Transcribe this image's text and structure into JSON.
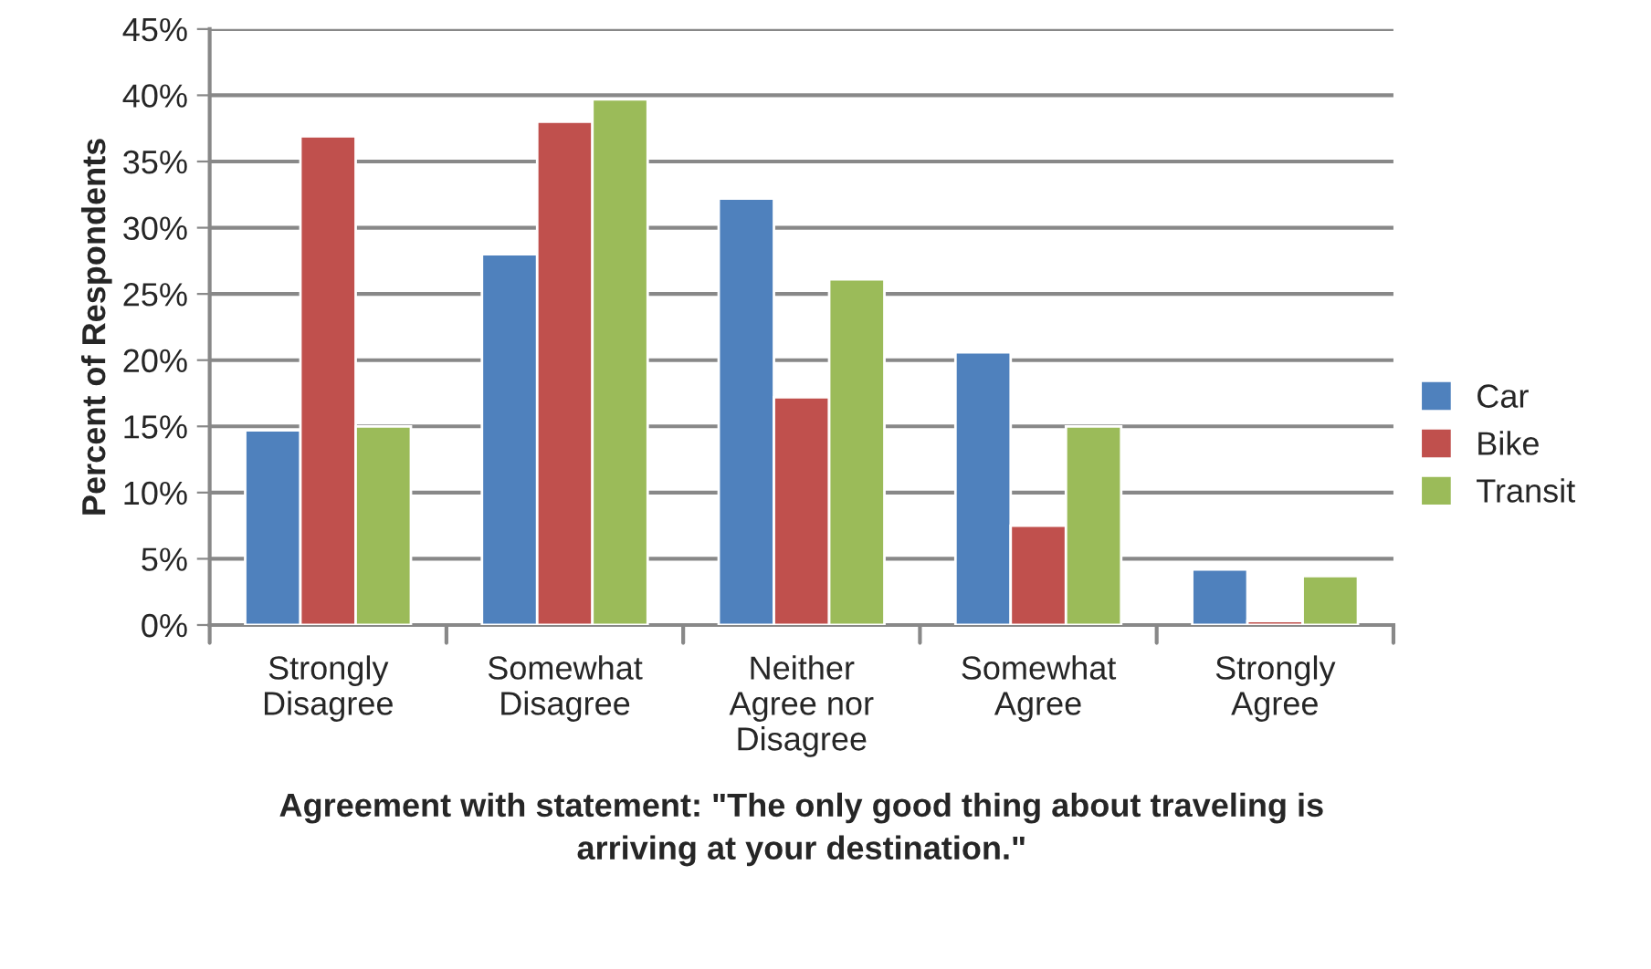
{
  "chart_data": {
    "type": "bar",
    "xlabel": "Agreement with statement: \"The only good thing about traveling is\narriving at your destination.\"",
    "ylabel": "Percent of Respondents",
    "categories": [
      "Strongly\nDisagree",
      "Somewhat\nDisagree",
      "Neither\nAgree nor\nDisagree",
      "Somewhat\nAgree",
      "Strongly\nAgree"
    ],
    "series": [
      {
        "name": "Car",
        "color": "#4f81bd",
        "values": [
          14.7,
          28.0,
          32.2,
          20.6,
          4.2
        ]
      },
      {
        "name": "Bike",
        "color": "#c0504d",
        "values": [
          36.9,
          38.0,
          17.2,
          7.5,
          0.3
        ]
      },
      {
        "name": "Transit",
        "color": "#9bbb59",
        "values": [
          15.0,
          39.7,
          26.1,
          15.0,
          3.7
        ]
      }
    ],
    "ylim": [
      0,
      45
    ],
    "yticks": [
      {
        "value": 0,
        "label": "0%"
      },
      {
        "value": 5,
        "label": "5%"
      },
      {
        "value": 10,
        "label": "10%"
      },
      {
        "value": 15,
        "label": "15%"
      },
      {
        "value": 20,
        "label": "20%"
      },
      {
        "value": 25,
        "label": "25%"
      },
      {
        "value": 30,
        "label": "30%"
      },
      {
        "value": 35,
        "label": "35%"
      },
      {
        "value": 40,
        "label": "40%"
      },
      {
        "value": 45,
        "label": "45%"
      }
    ],
    "grid": "y",
    "legend": "right"
  }
}
